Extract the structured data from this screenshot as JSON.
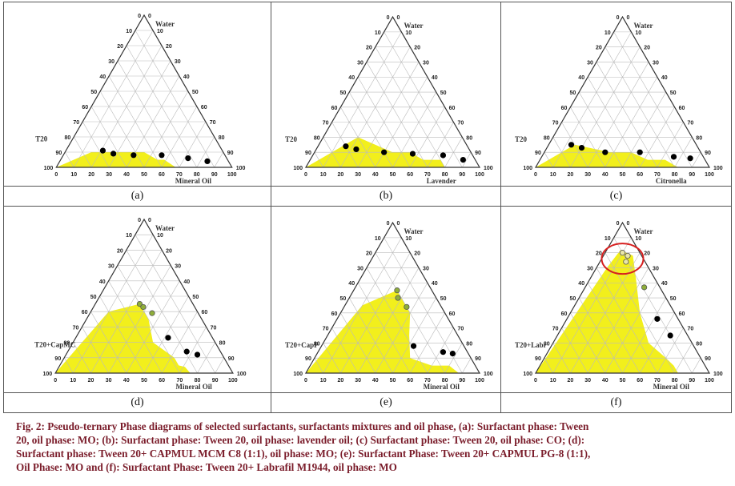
{
  "caption_lines": [
    "Fig. 2: Pseudo-ternary Phase diagrams of selected surfactants, surfactants mixtures and oil phase, (a): Surfactant phase: Tween",
    "20, oil phase: MO; (b): Surfactant phase: Tween 20, oil phase: lavender oil; (c) Surfactant phase: Tween 20, oil phase: CO; (d):",
    "Surfactant phase: Tween 20+ CAPMUL MCM C8 (1:1), oil phase: MO; (e): Surfactant Phase: Tween 20+ CAPMUL PG-8 (1:1),",
    "Oil Phase: MO and (f): Surfactant Phase: Tween 20+ Labrafil M1944, oil phase: MO"
  ],
  "tick_values": [
    "0",
    "10",
    "20",
    "30",
    "40",
    "50",
    "60",
    "70",
    "80",
    "90",
    "100"
  ],
  "colors": {
    "region": "#f2ef1c",
    "grid": "#bbbbbb",
    "frame": "#333333",
    "point_black": "#000000",
    "point_green": "#8fae3a",
    "highlight": "#d62020"
  },
  "panels": [
    {
      "label": "(a)",
      "surfactant_label": "T20",
      "top_label": "Water",
      "oil_label": "Mineral Oil",
      "region": [
        [
          100,
          0
        ],
        [
          68,
          0
        ],
        [
          59,
          5
        ],
        [
          55,
          5
        ],
        [
          45,
          10
        ],
        [
          35,
          10
        ],
        [
          15,
          10
        ],
        [
          0,
          0
        ]
      ],
      "points": [
        {
          "o": 21,
          "w": 11,
          "c": "black"
        },
        {
          "o": 28,
          "w": 9,
          "c": "black"
        },
        {
          "o": 40,
          "w": 8,
          "c": "black"
        },
        {
          "o": 56,
          "w": 8,
          "c": "black"
        },
        {
          "o": 72,
          "w": 6,
          "c": "black"
        },
        {
          "o": 84,
          "w": 4,
          "c": "black"
        }
      ]
    },
    {
      "label": "(b)",
      "surfactant_label": "T20",
      "top_label": "Water",
      "oil_label": "Lavender",
      "region": [
        [
          100,
          0
        ],
        [
          80,
          0
        ],
        [
          75,
          5
        ],
        [
          65,
          5
        ],
        [
          55,
          10
        ],
        [
          45,
          10
        ],
        [
          20,
          20
        ],
        [
          0,
          0
        ]
      ],
      "points": [
        {
          "o": 16,
          "w": 14,
          "c": "black"
        },
        {
          "o": 23,
          "w": 12,
          "c": "black"
        },
        {
          "o": 40,
          "w": 10,
          "c": "black"
        },
        {
          "o": 57,
          "w": 9,
          "c": "black"
        },
        {
          "o": 75,
          "w": 8,
          "c": "black"
        },
        {
          "o": 88,
          "w": 5,
          "c": "black"
        }
      ]
    },
    {
      "label": "(c)",
      "surfactant_label": "T20",
      "top_label": "Water",
      "oil_label": "Citronella",
      "region": [
        [
          100,
          0
        ],
        [
          82,
          0
        ],
        [
          72,
          5
        ],
        [
          62,
          5
        ],
        [
          50,
          10
        ],
        [
          38,
          10
        ],
        [
          15,
          15
        ],
        [
          0,
          0
        ]
      ],
      "points": [
        {
          "o": 13,
          "w": 15,
          "c": "black"
        },
        {
          "o": 20,
          "w": 13,
          "c": "black"
        },
        {
          "o": 35,
          "w": 10,
          "c": "black"
        },
        {
          "o": 55,
          "w": 10,
          "c": "black"
        },
        {
          "o": 76,
          "w": 7,
          "c": "black"
        },
        {
          "o": 86,
          "w": 6,
          "c": "black"
        }
      ]
    },
    {
      "label": "(d)",
      "surfactant_label": "T20+CapMC",
      "top_label": "Water",
      "oil_label": "Mineral Oil",
      "region": [
        [
          100,
          0
        ],
        [
          76,
          0
        ],
        [
          71,
          4
        ],
        [
          67,
          5
        ],
        [
          62,
          10
        ],
        [
          45,
          20
        ],
        [
          35,
          35
        ],
        [
          25,
          45
        ],
        [
          10,
          40
        ],
        [
          0,
          0
        ]
      ],
      "points": [
        {
          "o": 25,
          "w": 45,
          "c": "green"
        },
        {
          "o": 28,
          "w": 43,
          "c": "green"
        },
        {
          "o": 35,
          "w": 39,
          "c": "green"
        },
        {
          "o": 52,
          "w": 23,
          "c": "black"
        },
        {
          "o": 67,
          "w": 14,
          "c": "black"
        },
        {
          "o": 74,
          "w": 12,
          "c": "black"
        }
      ]
    },
    {
      "label": "(e)",
      "surfactant_label": "T20+CapP",
      "top_label": "Water",
      "oil_label": "Mineral Oil",
      "region": [
        [
          100,
          0
        ],
        [
          88,
          0
        ],
        [
          80,
          5
        ],
        [
          70,
          5
        ],
        [
          55,
          10
        ],
        [
          47,
          25
        ],
        [
          40,
          40
        ],
        [
          25,
          55
        ],
        [
          10,
          45
        ],
        [
          0,
          0
        ]
      ],
      "points": [
        {
          "o": 25,
          "w": 55,
          "c": "green"
        },
        {
          "o": 28,
          "w": 50,
          "c": "green"
        },
        {
          "o": 36,
          "w": 44,
          "c": "green"
        },
        {
          "o": 53,
          "w": 18,
          "c": "black"
        },
        {
          "o": 72,
          "w": 14,
          "c": "black"
        },
        {
          "o": 78,
          "w": 13,
          "c": "black"
        }
      ]
    },
    {
      "label": "(f)",
      "surfactant_label": "T20+Labr",
      "top_label": "Water",
      "oil_label": "Mineral Oil",
      "region": [
        [
          100,
          0
        ],
        [
          82,
          0
        ],
        [
          77,
          5
        ],
        [
          70,
          10
        ],
        [
          55,
          20
        ],
        [
          40,
          40
        ],
        [
          28,
          60
        ],
        [
          17,
          78
        ],
        [
          8,
          82
        ],
        [
          6,
          70
        ],
        [
          0,
          0
        ]
      ],
      "points": [
        {
          "o": 10,
          "w": 80,
          "c": "grey"
        },
        {
          "o": 14,
          "w": 78,
          "c": "grey"
        },
        {
          "o": 15,
          "w": 74,
          "c": "grey"
        },
        {
          "o": 34,
          "w": 57,
          "c": "green"
        },
        {
          "o": 52,
          "w": 36,
          "c": "black"
        },
        {
          "o": 65,
          "w": 25,
          "c": "black"
        }
      ],
      "highlight": {
        "o": 12,
        "w": 76
      }
    }
  ]
}
